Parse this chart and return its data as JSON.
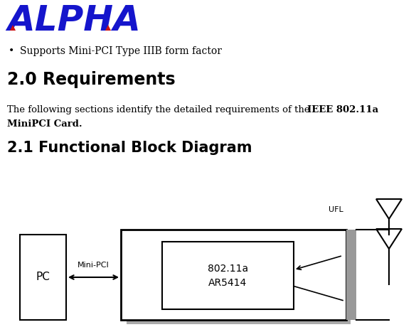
{
  "bg_color": "#ffffff",
  "alpha_color_blue": "#1515cc",
  "alpha_color_red": "#cc1111",
  "bullet_text": "Supports Mini-PCI Type IIIB form factor",
  "section1_title": "2.0 Requirements",
  "section1_body_normal": "The following sections identify the detailed requirements of the ",
  "section2_title": "2.1 Functional Block Diagram",
  "diagram": {
    "pc_label": "PC",
    "inner_label1": "802.11a",
    "inner_label2": "AR5414",
    "arrow_label": "Mini-PCI",
    "ufl_label": "UFL",
    "shadow_color": "#aaaaaa"
  }
}
